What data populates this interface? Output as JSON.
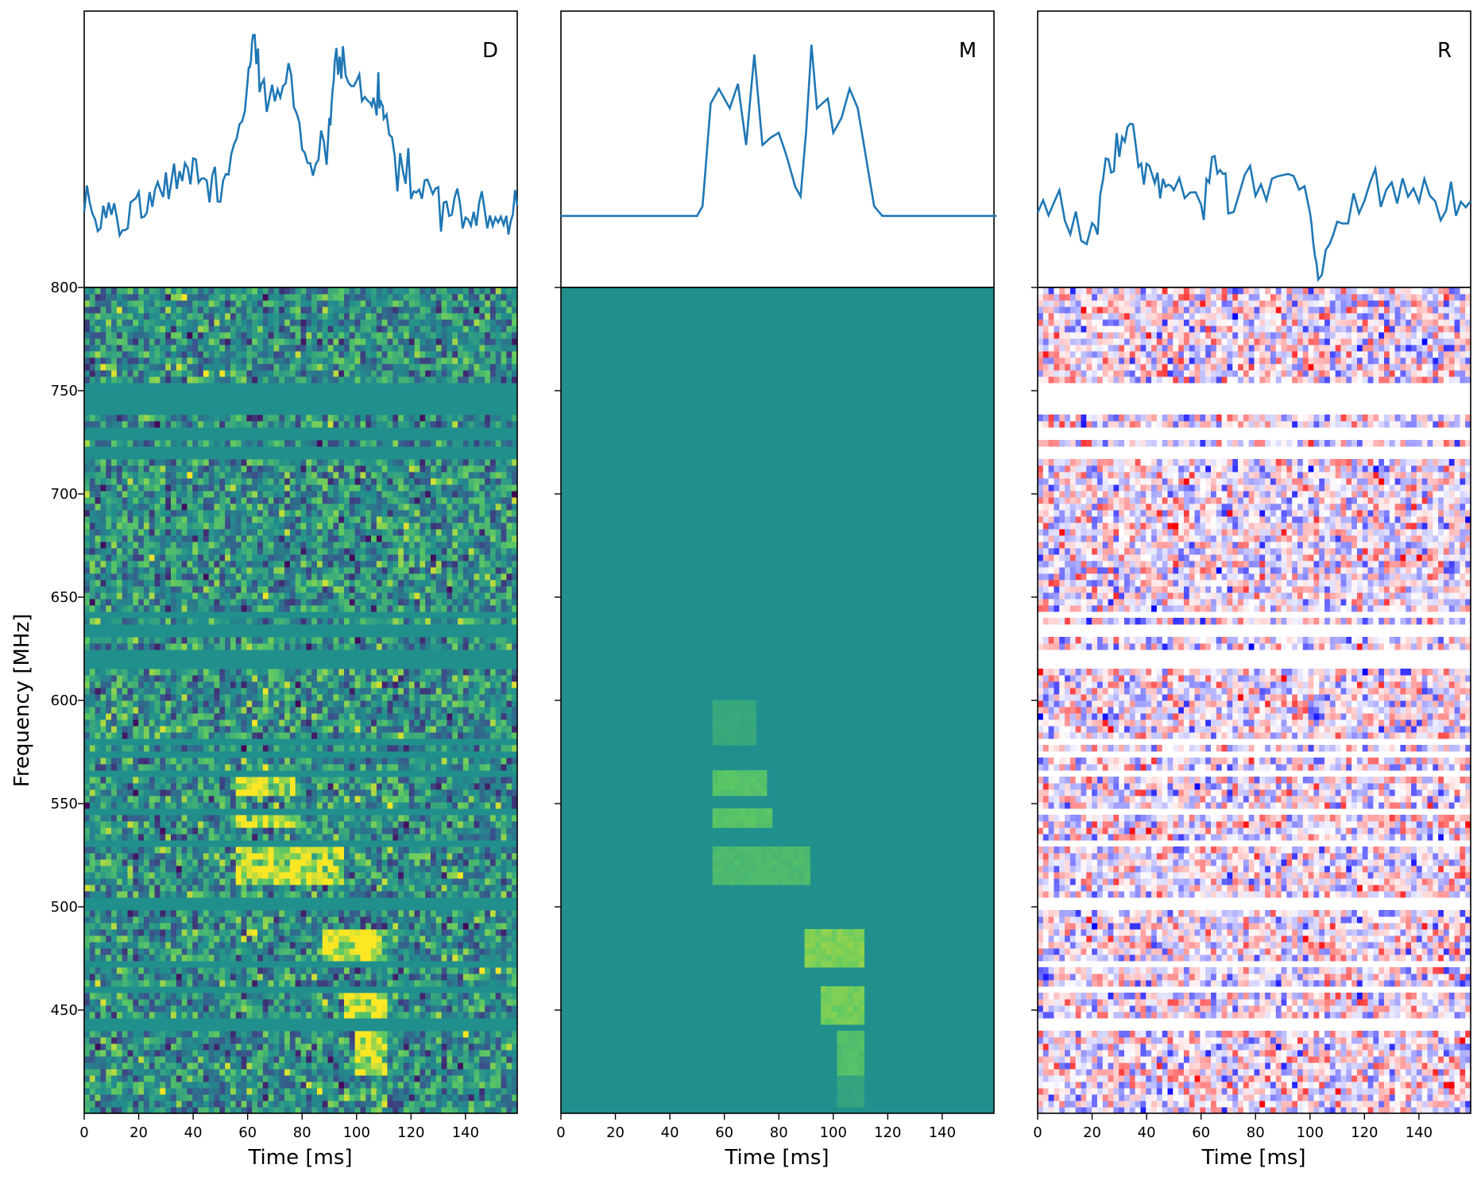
{
  "figure": {
    "ylabel": "Frequency [MHz]",
    "xlabel": "Time [ms]"
  },
  "chart_data": [
    {
      "type": "line",
      "panel": "D",
      "label": "D",
      "color": "#1f77b4",
      "x_range": [
        0,
        160
      ],
      "profile_description_values": {
        "x": [
          0,
          5,
          10,
          15,
          20,
          25,
          30,
          35,
          40,
          45,
          50,
          55,
          60,
          62,
          65,
          70,
          75,
          80,
          85,
          90,
          92,
          95,
          100,
          105,
          108,
          110,
          115,
          120,
          125,
          130,
          135,
          140,
          145,
          150,
          155,
          159
        ],
        "y": [
          0.35,
          0.28,
          0.3,
          0.22,
          0.3,
          0.32,
          0.4,
          0.38,
          0.45,
          0.4,
          0.36,
          0.55,
          0.82,
          0.98,
          0.78,
          0.7,
          0.85,
          0.55,
          0.48,
          0.62,
          0.85,
          0.88,
          0.78,
          0.72,
          0.8,
          0.72,
          0.45,
          0.4,
          0.35,
          0.32,
          0.3,
          0.28,
          0.26,
          0.24,
          0.22,
          0.3
        ]
      }
    },
    {
      "type": "line",
      "panel": "M",
      "label": "M",
      "color": "#1f77b4",
      "x_range": [
        0,
        160
      ],
      "profile_description_values": {
        "x": [
          0,
          50,
          52,
          55,
          58,
          62,
          65,
          68,
          71,
          74,
          77,
          80,
          83,
          86,
          88,
          90,
          92,
          94,
          96,
          98,
          100,
          103,
          106,
          109,
          112,
          115,
          118,
          120,
          160
        ],
        "y": [
          0.26,
          0.26,
          0.3,
          0.72,
          0.78,
          0.7,
          0.8,
          0.55,
          0.92,
          0.55,
          0.58,
          0.6,
          0.5,
          0.38,
          0.34,
          0.6,
          0.96,
          0.7,
          0.72,
          0.74,
          0.6,
          0.66,
          0.78,
          0.7,
          0.5,
          0.3,
          0.26,
          0.26,
          0.26
        ]
      }
    },
    {
      "type": "line",
      "panel": "R",
      "label": "R",
      "color": "#1f77b4",
      "x_range": [
        0,
        160
      ],
      "profile_description_values": {
        "x": [
          0,
          10,
          20,
          25,
          30,
          35,
          40,
          45,
          50,
          60,
          65,
          70,
          80,
          90,
          100,
          103,
          110,
          120,
          130,
          140,
          150,
          159
        ],
        "y": [
          0.35,
          0.3,
          0.2,
          0.45,
          0.52,
          0.6,
          0.4,
          0.38,
          0.36,
          0.34,
          0.48,
          0.36,
          0.36,
          0.38,
          0.3,
          0.0,
          0.3,
          0.36,
          0.38,
          0.34,
          0.3,
          0.32
        ]
      }
    },
    {
      "type": "heatmap",
      "panel": "D",
      "colormap": "viridis",
      "xlabel": "Time [ms]",
      "ylabel": "Frequency [MHz]",
      "xlim": [
        0,
        159
      ],
      "ylim": [
        400,
        800
      ],
      "xticks": [
        0,
        20,
        40,
        60,
        80,
        100,
        120,
        140
      ],
      "yticks": [
        450,
        500,
        550,
        600,
        650,
        700,
        750,
        800
      ],
      "masked_bands_mhz": [
        [
          717,
          722
        ],
        [
          727,
          732
        ],
        [
          738,
          753
        ],
        [
          616,
          624
        ],
        [
          630,
          638
        ],
        [
          640,
          643
        ],
        [
          577,
          582
        ],
        [
          572,
          575
        ],
        [
          563,
          565
        ],
        [
          545,
          548
        ],
        [
          528,
          532
        ],
        [
          500,
          505
        ],
        [
          470,
          475
        ],
        [
          458,
          460
        ],
        [
          440,
          445
        ]
      ],
      "signal_blobs": [
        {
          "t": [
            55,
            78
          ],
          "f": [
            555,
            565
          ]
        },
        {
          "t": [
            55,
            80
          ],
          "f": [
            538,
            548
          ]
        },
        {
          "t": [
            55,
            95
          ],
          "f": [
            510,
            530
          ]
        },
        {
          "t": [
            88,
            110
          ],
          "f": [
            470,
            490
          ]
        },
        {
          "t": [
            95,
            112
          ],
          "f": [
            440,
            460
          ]
        },
        {
          "t": [
            100,
            112
          ],
          "f": [
            420,
            440
          ]
        }
      ]
    },
    {
      "type": "heatmap",
      "panel": "M",
      "colormap": "viridis",
      "xlabel": "Time [ms]",
      "xlim": [
        0,
        159
      ],
      "ylim": [
        400,
        800
      ],
      "xticks": [
        0,
        20,
        40,
        60,
        80,
        100,
        120,
        140
      ],
      "signal_blobs": [
        {
          "t": [
            55,
            72
          ],
          "f": [
            580,
            600
          ],
          "level": 0.25
        },
        {
          "t": [
            55,
            75
          ],
          "f": [
            555,
            565
          ],
          "level": 0.55
        },
        {
          "t": [
            55,
            78
          ],
          "f": [
            538,
            548
          ],
          "level": 0.55
        },
        {
          "t": [
            55,
            92
          ],
          "f": [
            512,
            530
          ],
          "level": 0.45
        },
        {
          "t": [
            90,
            112
          ],
          "f": [
            472,
            490
          ],
          "level": 0.75
        },
        {
          "t": [
            95,
            112
          ],
          "f": [
            443,
            460
          ],
          "level": 0.7
        },
        {
          "t": [
            102,
            112
          ],
          "f": [
            420,
            440
          ],
          "level": 0.5
        },
        {
          "t": [
            102,
            112
          ],
          "f": [
            402,
            420
          ],
          "level": 0.2
        }
      ]
    },
    {
      "type": "heatmap",
      "panel": "R",
      "colormap": "bwr",
      "xlabel": "Time [ms]",
      "xlim": [
        0,
        159
      ],
      "ylim": [
        400,
        800
      ],
      "xticks": [
        0,
        20,
        40,
        60,
        80,
        100,
        120,
        140
      ],
      "masked_bands_mhz": [
        [
          717,
          722
        ],
        [
          727,
          732
        ],
        [
          738,
          753
        ],
        [
          616,
          624
        ],
        [
          630,
          638
        ],
        [
          640,
          643
        ],
        [
          577,
          582
        ],
        [
          572,
          575
        ],
        [
          563,
          565
        ],
        [
          545,
          548
        ],
        [
          528,
          532
        ],
        [
          500,
          505
        ],
        [
          470,
          475
        ],
        [
          458,
          460
        ],
        [
          440,
          445
        ]
      ]
    }
  ],
  "panels": [
    {
      "label": "D"
    },
    {
      "label": "M"
    },
    {
      "label": "R"
    }
  ],
  "axis": {
    "xticks": [
      "0",
      "20",
      "40",
      "60",
      "80",
      "100",
      "120",
      "140"
    ],
    "yticks": [
      "450",
      "500",
      "550",
      "600",
      "650",
      "700",
      "750",
      "800"
    ],
    "xlabel": "Time [ms]",
    "ylabel": "Frequency [MHz]"
  }
}
